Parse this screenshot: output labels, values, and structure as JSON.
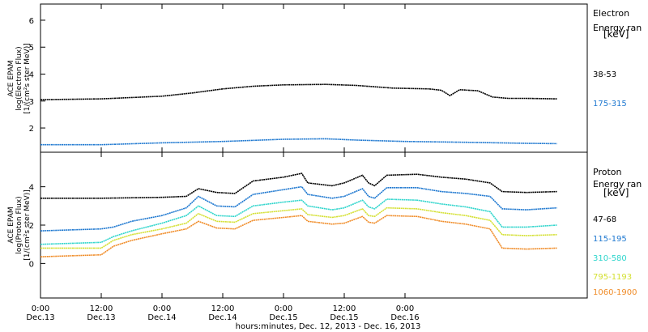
{
  "chart_data": [
    {
      "type": "line",
      "ylabel": [
        "ACE EPAM",
        "log(Electron Flux)",
        "[1/(cm²s ster MeV)]"
      ],
      "ylim": [
        1.1,
        6.6
      ],
      "yticks": [
        "2",
        "3",
        "4",
        "5",
        "6"
      ],
      "legend_title": [
        "Electron",
        "Energy ran",
        "[keV]"
      ],
      "series": [
        {
          "name": "38-53",
          "color": "#000000",
          "points": [
            [
              0,
              3.05
            ],
            [
              0.5,
              3.08
            ],
            [
              1.0,
              3.18
            ],
            [
              1.25,
              3.3
            ],
            [
              1.5,
              3.45
            ],
            [
              1.75,
              3.55
            ],
            [
              2.0,
              3.6
            ],
            [
              2.35,
              3.62
            ],
            [
              2.6,
              3.58
            ],
            [
              2.9,
              3.48
            ],
            [
              3.2,
              3.45
            ],
            [
              3.3,
              3.4
            ],
            [
              3.37,
              3.2
            ],
            [
              3.45,
              3.42
            ],
            [
              3.6,
              3.38
            ],
            [
              3.72,
              3.15
            ],
            [
              3.85,
              3.1
            ],
            [
              4.0,
              3.1
            ],
            [
              4.25,
              3.08
            ]
          ]
        },
        {
          "name": "175-315",
          "color": "#1e78d0",
          "points": [
            [
              0,
              1.38
            ],
            [
              0.5,
              1.38
            ],
            [
              1.0,
              1.45
            ],
            [
              1.5,
              1.5
            ],
            [
              2.0,
              1.58
            ],
            [
              2.35,
              1.6
            ],
            [
              2.6,
              1.55
            ],
            [
              3.0,
              1.5
            ],
            [
              3.5,
              1.47
            ],
            [
              4.0,
              1.43
            ],
            [
              4.25,
              1.42
            ]
          ]
        }
      ]
    },
    {
      "type": "line",
      "ylabel": [
        "ACE EPAM",
        "log(Proton Flux)",
        "[1/(cm²s ster MeV)]"
      ],
      "ylim": [
        -1.8,
        5.8
      ],
      "yticks": [
        "0",
        "2",
        "4"
      ],
      "legend_title": [
        "Proton",
        "Energy ran",
        "[keV]"
      ],
      "series": [
        {
          "name": "47-68",
          "color": "#000000",
          "points": [
            [
              0,
              3.4
            ],
            [
              0.5,
              3.4
            ],
            [
              1.0,
              3.45
            ],
            [
              1.2,
              3.5
            ],
            [
              1.3,
              3.9
            ],
            [
              1.45,
              3.7
            ],
            [
              1.6,
              3.65
            ],
            [
              1.75,
              4.3
            ],
            [
              2.0,
              4.5
            ],
            [
              2.15,
              4.7
            ],
            [
              2.2,
              4.2
            ],
            [
              2.4,
              4.05
            ],
            [
              2.5,
              4.2
            ],
            [
              2.65,
              4.6
            ],
            [
              2.7,
              4.2
            ],
            [
              2.75,
              4.05
            ],
            [
              2.85,
              4.6
            ],
            [
              3.1,
              4.65
            ],
            [
              3.3,
              4.5
            ],
            [
              3.5,
              4.4
            ],
            [
              3.7,
              4.2
            ],
            [
              3.8,
              3.75
            ],
            [
              4.0,
              3.7
            ],
            [
              4.25,
              3.75
            ]
          ]
        },
        {
          "name": "115-195",
          "color": "#1e78d0",
          "points": [
            [
              0,
              1.7
            ],
            [
              0.5,
              1.8
            ],
            [
              0.6,
              1.9
            ],
            [
              0.75,
              2.2
            ],
            [
              1.0,
              2.5
            ],
            [
              1.2,
              2.9
            ],
            [
              1.3,
              3.5
            ],
            [
              1.45,
              3.0
            ],
            [
              1.6,
              2.95
            ],
            [
              1.75,
              3.6
            ],
            [
              2.0,
              3.85
            ],
            [
              2.15,
              4.0
            ],
            [
              2.2,
              3.6
            ],
            [
              2.4,
              3.4
            ],
            [
              2.5,
              3.5
            ],
            [
              2.65,
              3.9
            ],
            [
              2.7,
              3.5
            ],
            [
              2.75,
              3.4
            ],
            [
              2.85,
              3.95
            ],
            [
              3.1,
              3.95
            ],
            [
              3.3,
              3.75
            ],
            [
              3.5,
              3.65
            ],
            [
              3.7,
              3.5
            ],
            [
              3.8,
              2.85
            ],
            [
              4.0,
              2.8
            ],
            [
              4.25,
              2.9
            ]
          ]
        },
        {
          "name": "310-580",
          "color": "#2fd5cc",
          "points": [
            [
              0,
              1.0
            ],
            [
              0.5,
              1.1
            ],
            [
              0.6,
              1.4
            ],
            [
              0.75,
              1.7
            ],
            [
              1.0,
              2.1
            ],
            [
              1.2,
              2.5
            ],
            [
              1.3,
              3.0
            ],
            [
              1.45,
              2.5
            ],
            [
              1.6,
              2.45
            ],
            [
              1.75,
              3.0
            ],
            [
              2.0,
              3.2
            ],
            [
              2.15,
              3.3
            ],
            [
              2.2,
              3.0
            ],
            [
              2.4,
              2.8
            ],
            [
              2.5,
              2.9
            ],
            [
              2.65,
              3.3
            ],
            [
              2.7,
              2.95
            ],
            [
              2.75,
              2.85
            ],
            [
              2.85,
              3.35
            ],
            [
              3.1,
              3.3
            ],
            [
              3.3,
              3.1
            ],
            [
              3.5,
              2.95
            ],
            [
              3.7,
              2.7
            ],
            [
              3.8,
              1.9
            ],
            [
              4.0,
              1.9
            ],
            [
              4.25,
              2.0
            ]
          ]
        },
        {
          "name": "795-1193",
          "color": "#d4e032",
          "points": [
            [
              0,
              0.8
            ],
            [
              0.5,
              0.8
            ],
            [
              0.6,
              1.2
            ],
            [
              0.75,
              1.5
            ],
            [
              1.0,
              1.8
            ],
            [
              1.2,
              2.1
            ],
            [
              1.3,
              2.6
            ],
            [
              1.45,
              2.2
            ],
            [
              1.6,
              2.15
            ],
            [
              1.75,
              2.6
            ],
            [
              2.0,
              2.75
            ],
            [
              2.15,
              2.85
            ],
            [
              2.2,
              2.55
            ],
            [
              2.4,
              2.4
            ],
            [
              2.5,
              2.5
            ],
            [
              2.65,
              2.85
            ],
            [
              2.7,
              2.5
            ],
            [
              2.75,
              2.45
            ],
            [
              2.85,
              2.9
            ],
            [
              3.1,
              2.85
            ],
            [
              3.3,
              2.65
            ],
            [
              3.5,
              2.5
            ],
            [
              3.7,
              2.25
            ],
            [
              3.8,
              1.5
            ],
            [
              4.0,
              1.45
            ],
            [
              4.25,
              1.5
            ]
          ]
        },
        {
          "name": "1060-1900",
          "color": "#f08c28",
          "points": [
            [
              0,
              0.35
            ],
            [
              0.5,
              0.45
            ],
            [
              0.6,
              0.9
            ],
            [
              0.75,
              1.2
            ],
            [
              1.0,
              1.55
            ],
            [
              1.2,
              1.8
            ],
            [
              1.3,
              2.2
            ],
            [
              1.45,
              1.85
            ],
            [
              1.6,
              1.8
            ],
            [
              1.75,
              2.25
            ],
            [
              2.0,
              2.4
            ],
            [
              2.15,
              2.5
            ],
            [
              2.2,
              2.2
            ],
            [
              2.4,
              2.05
            ],
            [
              2.5,
              2.1
            ],
            [
              2.65,
              2.45
            ],
            [
              2.7,
              2.15
            ],
            [
              2.75,
              2.1
            ],
            [
              2.85,
              2.5
            ],
            [
              3.1,
              2.45
            ],
            [
              3.3,
              2.2
            ],
            [
              3.5,
              2.05
            ],
            [
              3.7,
              1.8
            ],
            [
              3.8,
              0.8
            ],
            [
              4.0,
              0.75
            ],
            [
              4.25,
              0.8
            ]
          ]
        }
      ]
    }
  ],
  "x_axis": {
    "xlim": [
      0,
      4.5
    ],
    "ticks": [
      {
        "x": 0,
        "time": "0:00",
        "date": "Dec.13"
      },
      {
        "x": 0.5,
        "time": "12:00",
        "date": "Dec.13"
      },
      {
        "x": 1.0,
        "time": "0:00",
        "date": "Dec.14"
      },
      {
        "x": 1.5,
        "time": "12:00",
        "date": "Dec.14"
      },
      {
        "x": 2.0,
        "time": "0:00",
        "date": "Dec.15"
      },
      {
        "x": 2.5,
        "time": "12:00",
        "date": "Dec.15"
      },
      {
        "x": 3.0,
        "time": "0:00",
        "date": "Dec.16"
      }
    ],
    "xlabel": "hours:minutes, Dec. 12, 2013 - Dec. 16, 2013"
  }
}
